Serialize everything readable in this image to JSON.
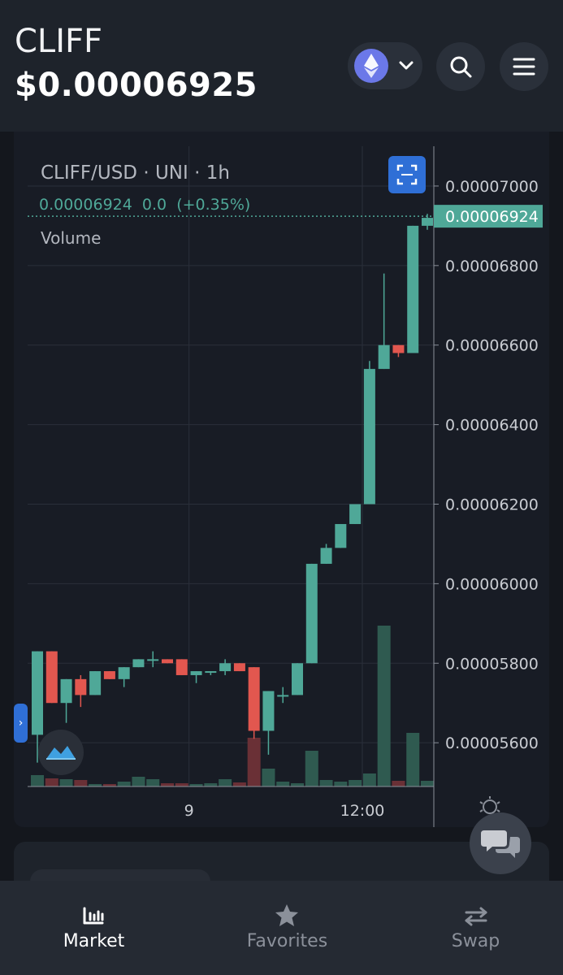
{
  "header": {
    "token": "CLIFF",
    "price": "$0.00006925"
  },
  "chart": {
    "symbol_line": "CLIFF/USD · UNI · 1h",
    "ohlc_line": "0.00006924  0.0  (+0.35%)",
    "volume_label": "Volume",
    "current_price_tag": "0.00006924",
    "colors": {
      "up": "#4fa898",
      "down": "#e2574f",
      "tag_bg": "#4fa898",
      "grid": "#2a2f3a"
    }
  },
  "chart_data": {
    "type": "candlestick",
    "symbol": "CLIFF/USD",
    "exchange": "UNI",
    "interval": "1h",
    "x_tick_labels": [
      "9",
      "12:00"
    ],
    "y_tick_labels": [
      "0.00007000",
      "0.00006800",
      "0.00006600",
      "0.00006400",
      "0.00006200",
      "0.00006000",
      "0.00005800",
      "0.00005600"
    ],
    "ylim": [
      5.49e-05,
      7.1e-05
    ],
    "last_price": 6.924e-05,
    "candles": [
      {
        "o": 5.62e-05,
        "h": 5.83e-05,
        "l": 5.55e-05,
        "c": 5.83e-05,
        "v": 14
      },
      {
        "o": 5.83e-05,
        "h": 5.83e-05,
        "l": 5.7e-05,
        "c": 5.7e-05,
        "v": 10
      },
      {
        "o": 5.7e-05,
        "h": 5.76e-05,
        "l": 5.65e-05,
        "c": 5.76e-05,
        "v": 9
      },
      {
        "o": 5.76e-05,
        "h": 5.77e-05,
        "l": 5.69e-05,
        "c": 5.72e-05,
        "v": 8
      },
      {
        "o": 5.72e-05,
        "h": 5.78e-05,
        "l": 5.72e-05,
        "c": 5.78e-05,
        "v": 3
      },
      {
        "o": 5.78e-05,
        "h": 5.78e-05,
        "l": 5.76e-05,
        "c": 5.76e-05,
        "v": 3
      },
      {
        "o": 5.76e-05,
        "h": 5.79e-05,
        "l": 5.74e-05,
        "c": 5.79e-05,
        "v": 6
      },
      {
        "o": 5.79e-05,
        "h": 5.81e-05,
        "l": 5.79e-05,
        "c": 5.81e-05,
        "v": 12
      },
      {
        "o": 5.81e-05,
        "h": 5.83e-05,
        "l": 5.79e-05,
        "c": 5.81e-05,
        "v": 9
      },
      {
        "o": 5.81e-05,
        "h": 5.81e-05,
        "l": 5.8e-05,
        "c": 5.8e-05,
        "v": 4
      },
      {
        "o": 5.81e-05,
        "h": 5.81e-05,
        "l": 5.77e-05,
        "c": 5.77e-05,
        "v": 4
      },
      {
        "o": 5.77e-05,
        "h": 5.78e-05,
        "l": 5.75e-05,
        "c": 5.78e-05,
        "v": 3
      },
      {
        "o": 5.78e-05,
        "h": 5.78e-05,
        "l": 5.77e-05,
        "c": 5.78e-05,
        "v": 4
      },
      {
        "o": 5.78e-05,
        "h": 5.81e-05,
        "l": 5.77e-05,
        "c": 5.8e-05,
        "v": 9
      },
      {
        "o": 5.8e-05,
        "h": 5.8e-05,
        "l": 5.78e-05,
        "c": 5.78e-05,
        "v": 5
      },
      {
        "o": 5.79e-05,
        "h": 5.79e-05,
        "l": 5.61e-05,
        "c": 5.63e-05,
        "v": 60
      },
      {
        "o": 5.63e-05,
        "h": 5.73e-05,
        "l": 5.57e-05,
        "c": 5.73e-05,
        "v": 22
      },
      {
        "o": 5.72e-05,
        "h": 5.74e-05,
        "l": 5.7e-05,
        "c": 5.72e-05,
        "v": 6
      },
      {
        "o": 5.72e-05,
        "h": 5.8e-05,
        "l": 5.72e-05,
        "c": 5.8e-05,
        "v": 4
      },
      {
        "o": 5.8e-05,
        "h": 6.05e-05,
        "l": 5.8e-05,
        "c": 6.05e-05,
        "v": 44
      },
      {
        "o": 6.05e-05,
        "h": 6.1e-05,
        "l": 6.05e-05,
        "c": 6.09e-05,
        "v": 8
      },
      {
        "o": 6.09e-05,
        "h": 6.15e-05,
        "l": 6.09e-05,
        "c": 6.15e-05,
        "v": 6
      },
      {
        "o": 6.15e-05,
        "h": 6.2e-05,
        "l": 6.15e-05,
        "c": 6.2e-05,
        "v": 8
      },
      {
        "o": 6.2e-05,
        "h": 6.56e-05,
        "l": 6.2e-05,
        "c": 6.54e-05,
        "v": 16
      },
      {
        "o": 6.54e-05,
        "h": 6.78e-05,
        "l": 6.54e-05,
        "c": 6.6e-05,
        "v": 198
      },
      {
        "o": 6.6e-05,
        "h": 6.6e-05,
        "l": 6.57e-05,
        "c": 6.58e-05,
        "v": 7
      },
      {
        "o": 6.58e-05,
        "h": 6.9e-05,
        "l": 6.58e-05,
        "c": 6.9e-05,
        "v": 66
      },
      {
        "o": 6.9e-05,
        "h": 6.93e-05,
        "l": 6.89e-05,
        "c": 6.92e-05,
        "v": 7
      }
    ]
  },
  "nav": {
    "items": [
      {
        "label": "Market",
        "icon": "bar-chart-icon",
        "active": true
      },
      {
        "label": "Favorites",
        "icon": "star-icon",
        "active": false
      },
      {
        "label": "Swap",
        "icon": "swap-arrows-icon",
        "active": false
      }
    ]
  }
}
